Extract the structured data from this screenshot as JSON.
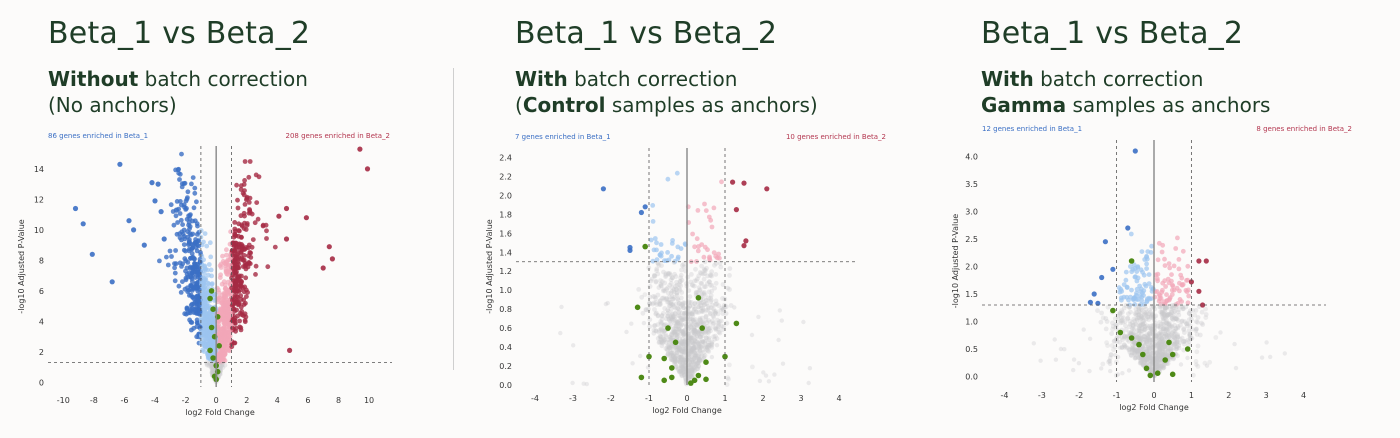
{
  "colors": {
    "blue_dark": "#3b6fc4",
    "blue_light": "#9cc4f0",
    "red_dark": "#a52a44",
    "red_light": "#f2a7b8",
    "green": "#4e8a17",
    "grey": "#c9c9cc",
    "enrich_blue": "#3b6fc4",
    "enrich_red": "#b3364f"
  },
  "panels": [
    {
      "title": "Beta_1 vs Beta_2",
      "subtitle_line1_bold": "Without",
      "subtitle_line1_rest": " batch correction",
      "subtitle_line2_bold": "",
      "subtitle_line2_rest": "(No anchors)",
      "enriched_left": "86 genes enriched in Beta_1",
      "enriched_right": "208 genes enriched in Beta_2"
    },
    {
      "title": "Beta_1 vs Beta_2",
      "subtitle_line1_bold": "With",
      "subtitle_line1_rest": " batch correction",
      "subtitle_line2_bold": "Control",
      "subtitle_line2_prefix": "(",
      "subtitle_line2_rest": " samples as anchors)",
      "enriched_left": "7 genes enriched in Beta_1",
      "enriched_right": "10 genes enriched in Beta_2"
    },
    {
      "title": "Beta_1 vs Beta_2",
      "subtitle_line1_bold": "With",
      "subtitle_line1_rest": " batch correction",
      "subtitle_line2_bold": "Gamma",
      "subtitle_line2_rest": " samples as anchors",
      "enriched_left": "12 genes enriched in Beta_1",
      "enriched_right": "8 genes enriched in Beta_2"
    }
  ],
  "chart_data": [
    {
      "type": "scatter",
      "xlabel": "log2 Fold Change",
      "ylabel": "-log10 Adjusted P-Value",
      "xlim": [
        -11,
        11.5
      ],
      "ylim": [
        -0.3,
        15.5
      ],
      "xticks": [
        -10,
        -8,
        -6,
        -4,
        -2,
        0,
        2,
        4,
        6,
        8,
        10
      ],
      "yticks": [
        0,
        2,
        4,
        6,
        8,
        10,
        12,
        14
      ],
      "fc_threshold": 1,
      "p_threshold": 1.3,
      "highlight_points": [
        [
          -6.3,
          14.3
        ],
        [
          -4.2,
          13.1
        ],
        [
          -3.8,
          13.0
        ],
        [
          -9.2,
          11.4
        ],
        [
          -8.7,
          10.4
        ],
        [
          -5.7,
          10.6
        ],
        [
          -4.0,
          11.9
        ],
        [
          -3.6,
          11.2
        ],
        [
          -2.6,
          11.3
        ],
        [
          -8.1,
          8.4
        ],
        [
          -6.8,
          6.6
        ],
        [
          -4.7,
          9.0
        ],
        [
          9.4,
          15.3
        ],
        [
          9.9,
          14.0
        ],
        [
          4.6,
          11.4
        ],
        [
          4.1,
          10.9
        ],
        [
          5.9,
          10.8
        ],
        [
          4.6,
          9.4
        ],
        [
          7.4,
          8.9
        ],
        [
          7.6,
          8.1
        ],
        [
          7.0,
          7.5
        ],
        [
          4.8,
          2.1
        ],
        [
          -5.4,
          10.0
        ],
        [
          -3.4,
          9.4
        ]
      ],
      "green_points": [
        [
          -0.3,
          6.0
        ],
        [
          -0.4,
          5.5
        ],
        [
          -0.2,
          4.8
        ],
        [
          0.1,
          4.3
        ],
        [
          -0.3,
          3.6
        ],
        [
          -0.1,
          3.0
        ],
        [
          0.2,
          2.4
        ],
        [
          -0.4,
          2.1
        ],
        [
          -0.2,
          1.6
        ],
        [
          0.0,
          1.1
        ],
        [
          0.1,
          0.7
        ],
        [
          -0.1,
          0.4
        ],
        [
          0.0,
          0.2
        ]
      ]
    },
    {
      "type": "scatter",
      "xlabel": "log2 Fold Change",
      "ylabel": "-log10 Adjusted P-Value",
      "xlim": [
        -4.5,
        4.5
      ],
      "ylim": [
        0,
        2.5
      ],
      "xticks": [
        -4,
        -3,
        -2,
        -1,
        0,
        1,
        2,
        3,
        4
      ],
      "yticks": [
        0.0,
        0.2,
        0.4,
        0.6,
        0.8,
        1.0,
        1.2,
        1.4,
        1.6,
        1.8,
        2.0,
        2.2,
        2.4
      ],
      "fc_threshold": 1,
      "p_threshold": 1.3,
      "highlight_points": [
        [
          -2.2,
          2.07
        ],
        [
          -1.5,
          1.45
        ],
        [
          -1.5,
          1.42
        ],
        [
          -1.1,
          1.88
        ],
        [
          -1.2,
          1.82
        ],
        [
          1.2,
          2.14
        ],
        [
          1.3,
          1.85
        ],
        [
          1.5,
          1.47
        ],
        [
          1.55,
          1.52
        ],
        [
          2.1,
          2.07
        ],
        [
          1.5,
          2.13
        ]
      ],
      "green_points": [
        [
          -1.1,
          1.46
        ],
        [
          -1.3,
          0.82
        ],
        [
          -1.2,
          0.08
        ],
        [
          -0.5,
          0.6
        ],
        [
          -0.3,
          0.45
        ],
        [
          -0.6,
          0.28
        ],
        [
          -0.4,
          0.18
        ],
        [
          0.3,
          0.92
        ],
        [
          0.4,
          0.6
        ],
        [
          0.5,
          0.24
        ],
        [
          0.3,
          0.1
        ],
        [
          1.3,
          0.65
        ],
        [
          1.0,
          0.3
        ],
        [
          -1.0,
          0.3
        ],
        [
          -0.6,
          0.05
        ],
        [
          -0.4,
          0.08
        ],
        [
          0.2,
          0.05
        ],
        [
          0.1,
          0.02
        ],
        [
          0.5,
          0.06
        ]
      ]
    },
    {
      "type": "scatter",
      "xlabel": "log2 Fold Change",
      "ylabel": "-log10 Adjusted P-Value",
      "xlim": [
        -4.6,
        4.6
      ],
      "ylim": [
        -0.1,
        4.3
      ],
      "xticks": [
        -4,
        -3,
        -2,
        -1,
        0,
        1,
        2,
        3,
        4
      ],
      "yticks": [
        0.0,
        0.5,
        1.0,
        1.5,
        2.0,
        2.5,
        3.0,
        3.5,
        4.0
      ],
      "fc_threshold": 1,
      "p_threshold": 1.3,
      "highlight_points": [
        [
          -0.5,
          4.1
        ],
        [
          -0.7,
          2.7
        ],
        [
          -1.3,
          2.45
        ],
        [
          -1.1,
          1.95
        ],
        [
          -1.4,
          1.8
        ],
        [
          -1.6,
          1.5
        ],
        [
          -1.7,
          1.35
        ],
        [
          -1.5,
          1.33
        ],
        [
          1.4,
          2.1
        ],
        [
          1.2,
          2.1
        ],
        [
          1.2,
          1.55
        ],
        [
          1.3,
          1.3
        ],
        [
          1.0,
          1.72
        ]
      ],
      "green_points": [
        [
          -0.6,
          2.1
        ],
        [
          -1.1,
          1.2
        ],
        [
          -0.9,
          0.8
        ],
        [
          -0.6,
          0.7
        ],
        [
          -0.4,
          0.58
        ],
        [
          -0.3,
          0.4
        ],
        [
          0.4,
          0.62
        ],
        [
          0.5,
          0.4
        ],
        [
          0.3,
          0.3
        ],
        [
          -0.2,
          0.15
        ],
        [
          0.1,
          0.06
        ],
        [
          0.5,
          0.04
        ],
        [
          -0.1,
          0.02
        ],
        [
          0.9,
          0.5
        ]
      ]
    }
  ]
}
